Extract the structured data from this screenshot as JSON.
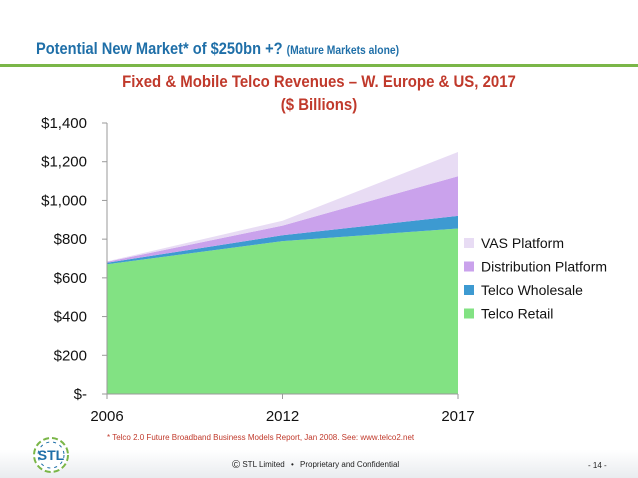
{
  "slide": {
    "title": "Potential New Market* of $250bn +?",
    "title_note": "(Mature Markets alone)",
    "footnote": "* Telco 2.0 Future Broadband Business Models Report, Jan 2008. See: www.telco2.net",
    "footer": {
      "copyright_symbol": "©",
      "company": "STL Limited",
      "separator": "•",
      "confidential": "Proprietary and Confidential",
      "page": "- 14 -"
    },
    "logo_text": "STL"
  },
  "chart_data": {
    "type": "area",
    "stacked": true,
    "title_line1": "Fixed & Mobile Telco Revenues – W. Europe & US, 2017",
    "title_line2": "($ Billions)",
    "x": [
      "2006",
      "2012",
      "2017"
    ],
    "ylim": [
      0,
      1400
    ],
    "yticks": [
      0,
      200,
      400,
      600,
      800,
      1000,
      1200,
      1400
    ],
    "ytick_labels": [
      "$-",
      "$200",
      "$400",
      "$600",
      "$800",
      "$1,000",
      "$1,200",
      "$1,400"
    ],
    "grid": false,
    "legend_position": "right",
    "series": [
      {
        "name": "Telco Retail",
        "values": [
          670,
          790,
          855
        ],
        "color": "#82e283"
      },
      {
        "name": "Telco Wholesale",
        "values": [
          8,
          30,
          65
        ],
        "color": "#3d9ad1"
      },
      {
        "name": "Distribution Platform",
        "values": [
          5,
          50,
          205
        ],
        "color": "#caa2ec"
      },
      {
        "name": "VAS Platform",
        "values": [
          2,
          25,
          125
        ],
        "color": "#e8dcf4"
      }
    ],
    "legend_order": [
      "VAS Platform",
      "Distribution Platform",
      "Telco Wholesale",
      "Telco Retail"
    ]
  }
}
